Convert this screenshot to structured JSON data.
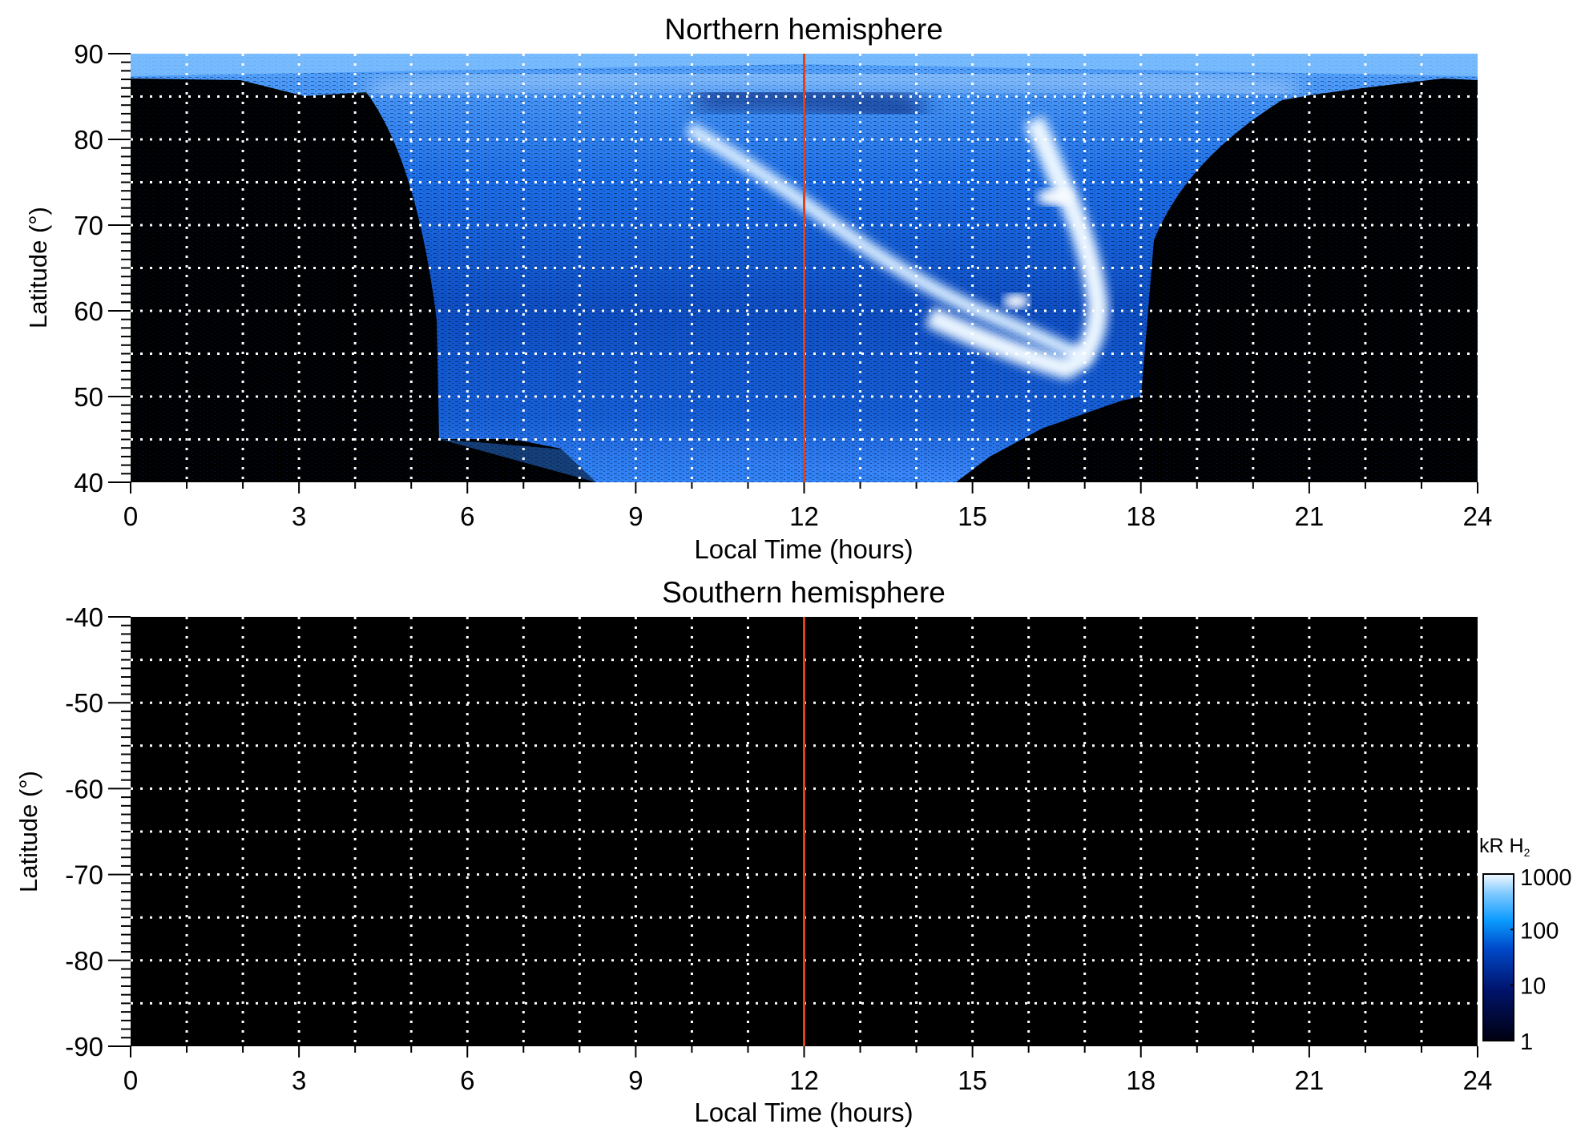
{
  "chart_data": [
    {
      "type": "heatmap",
      "title": "Northern hemisphere",
      "xlabel": "Local Time (hours)",
      "ylabel": "Latitude (°)",
      "xlim": [
        0,
        24
      ],
      "ylim": [
        40,
        90
      ],
      "xticks": [
        "0",
        "3",
        "6",
        "9",
        "12",
        "15",
        "18",
        "21",
        "24"
      ],
      "yticks": [
        "40",
        "50",
        "60",
        "70",
        "80",
        "90"
      ],
      "ytick_values": [
        40,
        50,
        60,
        70,
        80,
        90
      ],
      "grid": "dotted, every 1 h and every 5°",
      "marker_line_lt": 12,
      "description_of_emission": "auroral emission visible roughly 5.5–18 LT, with bright arc from ~10 LT/83° to ~17 LT/55° and hook up to ~73° near 16.5 LT"
    },
    {
      "type": "heatmap",
      "title": "Southern hemisphere",
      "xlabel": "Local Time (hours)",
      "ylabel": "Latitude (°)",
      "xlim": [
        0,
        24
      ],
      "ylim": [
        -90,
        -40
      ],
      "xticks": [
        "0",
        "3",
        "6",
        "9",
        "12",
        "15",
        "18",
        "21",
        "24"
      ],
      "yticks": [
        "-40",
        "-50",
        "-60",
        "-70",
        "-80",
        "-90"
      ],
      "ytick_values": [
        -40,
        -50,
        -60,
        -70,
        -80,
        -90
      ],
      "grid": "dotted, every 1 h and every 5°",
      "marker_line_lt": 12
    }
  ],
  "colorbar": {
    "title": "kR H",
    "title_sub": "2",
    "scale": "log",
    "range": [
      1,
      1000
    ],
    "ticks": [
      "1000",
      "100",
      "10",
      "1"
    ],
    "tick_values": [
      1000,
      100,
      10,
      1
    ]
  },
  "colors": {
    "marker_line": "#e0401a",
    "grid": "#ffffff"
  }
}
